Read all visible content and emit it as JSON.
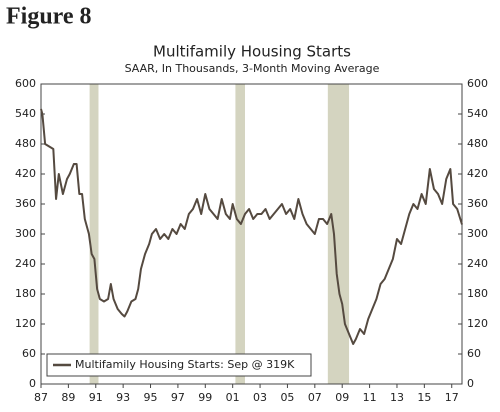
{
  "figure_label": "Figure 8",
  "chart_data": {
    "type": "line",
    "title": "Multifamily Housing Starts",
    "subtitle": "SAAR, In Thousands, 3-Month Moving Average",
    "x": [
      1987.0,
      1987.1,
      1987.3,
      1987.6,
      1987.9,
      1988.1,
      1988.3,
      1988.6,
      1988.9,
      1989.1,
      1989.4,
      1989.6,
      1989.8,
      1990.0,
      1990.2,
      1990.5,
      1990.7,
      1990.9,
      1991.1,
      1991.3,
      1991.6,
      1991.9,
      1992.1,
      1992.3,
      1992.6,
      1992.9,
      1993.1,
      1993.3,
      1993.6,
      1993.9,
      1994.1,
      1994.3,
      1994.6,
      1994.9,
      1995.1,
      1995.4,
      1995.7,
      1996.0,
      1996.3,
      1996.6,
      1996.9,
      1997.2,
      1997.5,
      1997.8,
      1998.1,
      1998.4,
      1998.7,
      1999.0,
      1999.3,
      1999.6,
      1999.9,
      2000.2,
      2000.5,
      2000.8,
      2001.0,
      2001.3,
      2001.6,
      2001.9,
      2002.2,
      2002.5,
      2002.8,
      2003.1,
      2003.4,
      2003.7,
      2004.0,
      2004.3,
      2004.6,
      2004.9,
      2005.2,
      2005.5,
      2005.8,
      2006.1,
      2006.4,
      2006.7,
      2007.0,
      2007.3,
      2007.6,
      2007.9,
      2008.2,
      2008.4,
      2008.6,
      2008.8,
      2009.0,
      2009.2,
      2009.5,
      2009.8,
      2010.0,
      2010.3,
      2010.6,
      2010.9,
      2011.2,
      2011.5,
      2011.8,
      2012.1,
      2012.4,
      2012.7,
      2013.0,
      2013.3,
      2013.6,
      2013.9,
      2014.2,
      2014.5,
      2014.8,
      2015.1,
      2015.4,
      2015.7,
      2016.0,
      2016.3,
      2016.6,
      2016.9,
      2017.1,
      2017.4,
      2017.75
    ],
    "series": [
      {
        "name": "Multifamily Housing Starts: Sep @ 319K",
        "color": "#554a40",
        "values": [
          550,
          540,
          480,
          475,
          470,
          370,
          420,
          380,
          410,
          420,
          440,
          440,
          380,
          380,
          330,
          300,
          260,
          250,
          190,
          170,
          165,
          170,
          200,
          170,
          150,
          140,
          135,
          145,
          165,
          170,
          190,
          230,
          260,
          280,
          300,
          310,
          290,
          300,
          290,
          310,
          300,
          320,
          310,
          340,
          350,
          370,
          340,
          380,
          350,
          340,
          330,
          370,
          340,
          330,
          360,
          330,
          320,
          340,
          350,
          330,
          340,
          340,
          350,
          330,
          340,
          350,
          360,
          340,
          350,
          330,
          370,
          340,
          320,
          310,
          300,
          330,
          330,
          320,
          340,
          300,
          220,
          180,
          160,
          120,
          100,
          80,
          90,
          110,
          100,
          130,
          150,
          170,
          200,
          210,
          230,
          250,
          290,
          280,
          310,
          340,
          360,
          350,
          380,
          360,
          430,
          390,
          380,
          360,
          410,
          430,
          360,
          350,
          319
        ]
      }
    ],
    "recessions": [
      [
        1990.55,
        1991.2
      ],
      [
        2001.2,
        2001.9
      ],
      [
        2007.95,
        2009.5
      ]
    ],
    "recession_color": "#d4d4c0",
    "xlim": [
      1987,
      2017.75
    ],
    "xticks": [
      {
        "value": 1987,
        "label": "87"
      },
      {
        "value": 1989,
        "label": "89"
      },
      {
        "value": 1991,
        "label": "91"
      },
      {
        "value": 1993,
        "label": "93"
      },
      {
        "value": 1995,
        "label": "95"
      },
      {
        "value": 1997,
        "label": "97"
      },
      {
        "value": 1999,
        "label": "99"
      },
      {
        "value": 2001,
        "label": "01"
      },
      {
        "value": 2003,
        "label": "03"
      },
      {
        "value": 2005,
        "label": "05"
      },
      {
        "value": 2007,
        "label": "07"
      },
      {
        "value": 2009,
        "label": "09"
      },
      {
        "value": 2011,
        "label": "11"
      },
      {
        "value": 2013,
        "label": "13"
      },
      {
        "value": 2015,
        "label": "15"
      },
      {
        "value": 2017,
        "label": "17"
      }
    ],
    "ylim": [
      0,
      600
    ],
    "yticks": [
      0,
      60,
      120,
      180,
      240,
      300,
      360,
      420,
      480,
      540,
      600
    ],
    "y2lim": [
      0,
      600
    ],
    "y2ticks": [
      0,
      60,
      120,
      180,
      240,
      300,
      360,
      420,
      480,
      540,
      600
    ],
    "legend": "lower left"
  }
}
